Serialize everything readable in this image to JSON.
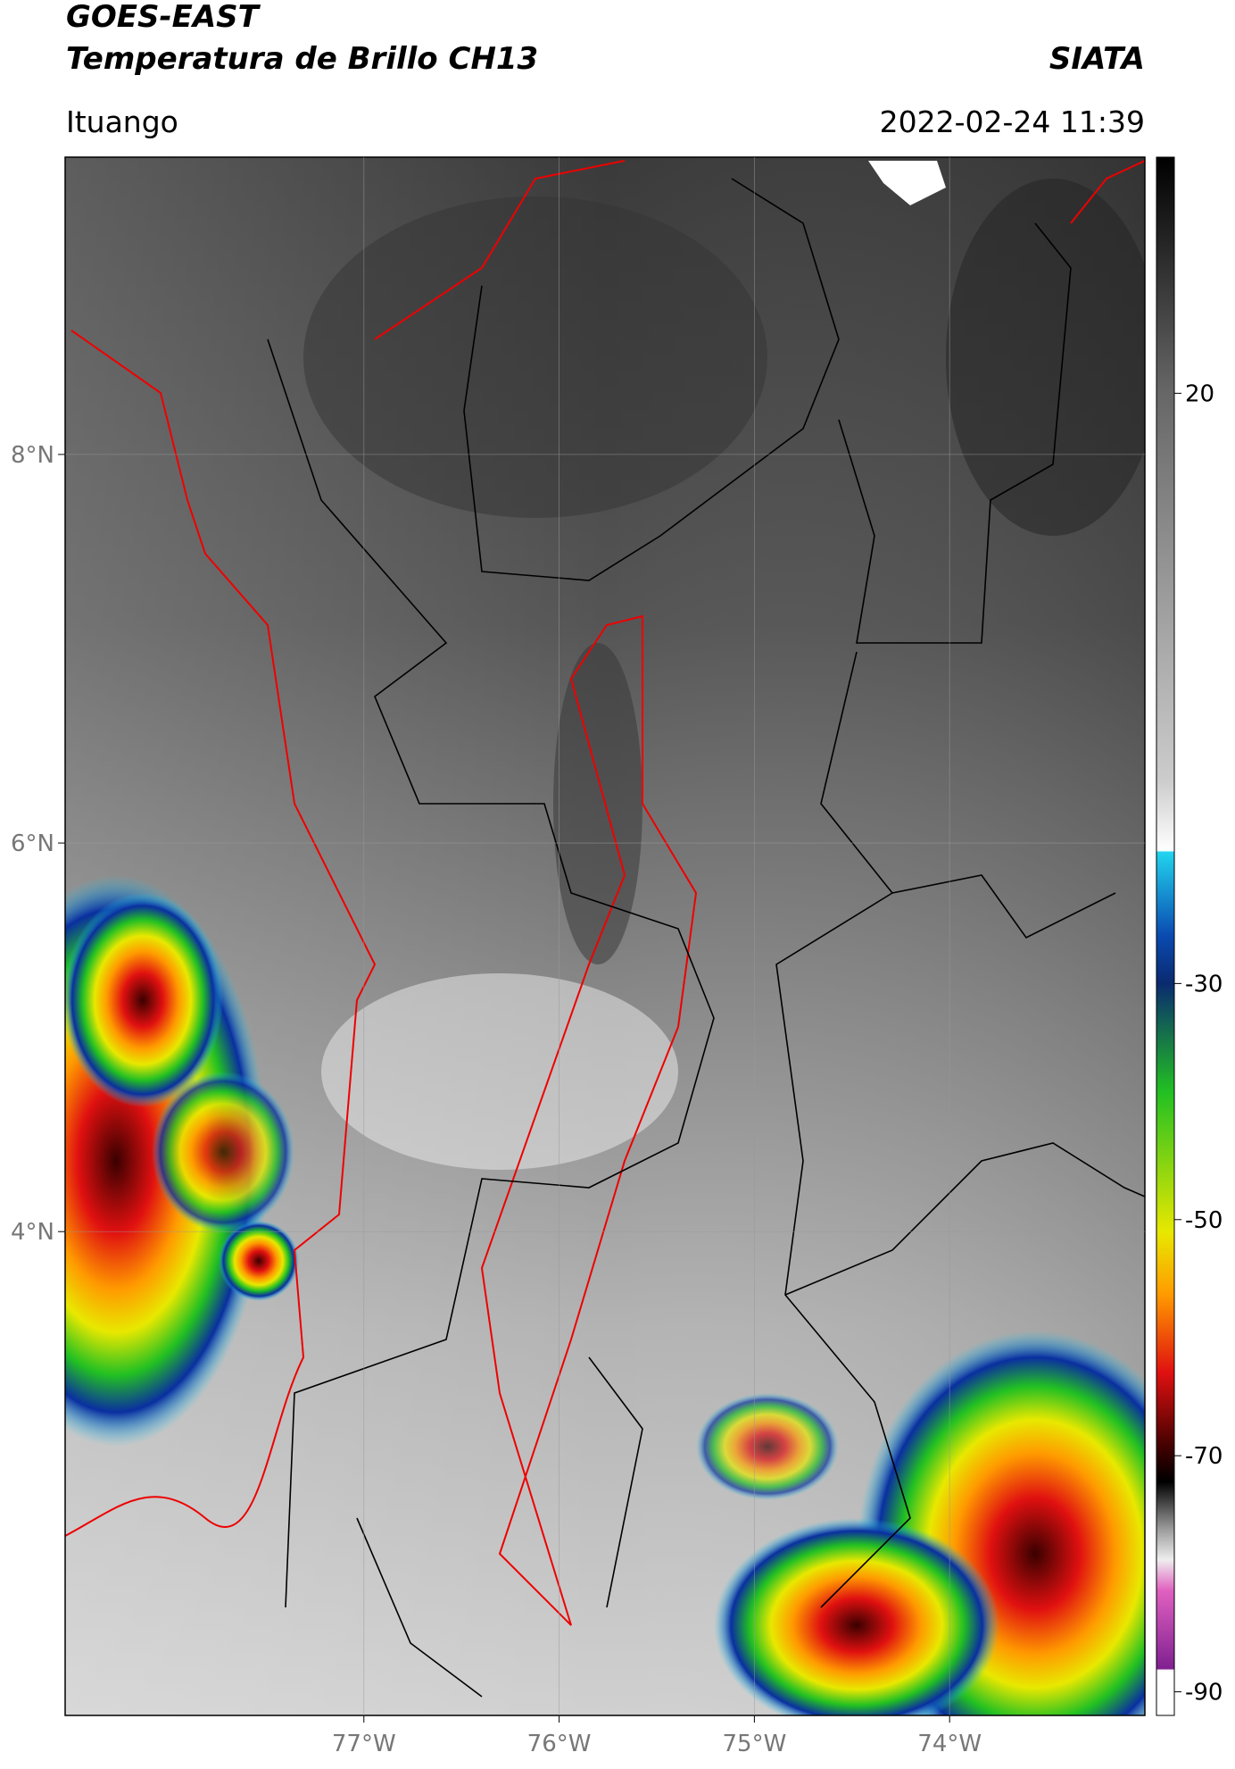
{
  "header": {
    "title": "GOES-EAST",
    "subtitle": "Temperatura de Brillo CH13",
    "brand": "SIATA",
    "place": "Ituango",
    "datetime": "2022-02-24 11:39"
  },
  "map": {
    "xlim": [
      -78.53,
      -73.0
    ],
    "ylim": [
      1.51,
      9.53
    ],
    "xticks": [
      {
        "value": -77,
        "label": "77°W"
      },
      {
        "value": -76,
        "label": "76°W"
      },
      {
        "value": -75,
        "label": "75°W"
      },
      {
        "value": -74,
        "label": "74°W"
      }
    ],
    "yticks": [
      {
        "value": 8,
        "label": "8°N"
      },
      {
        "value": 6,
        "label": "6°N"
      },
      {
        "value": 4,
        "label": "4°N"
      }
    ],
    "grid": true
  },
  "colorbar": {
    "lim": [
      -92,
      40
    ],
    "ticks": [
      20,
      -30,
      -50,
      -70,
      -90
    ]
  }
}
